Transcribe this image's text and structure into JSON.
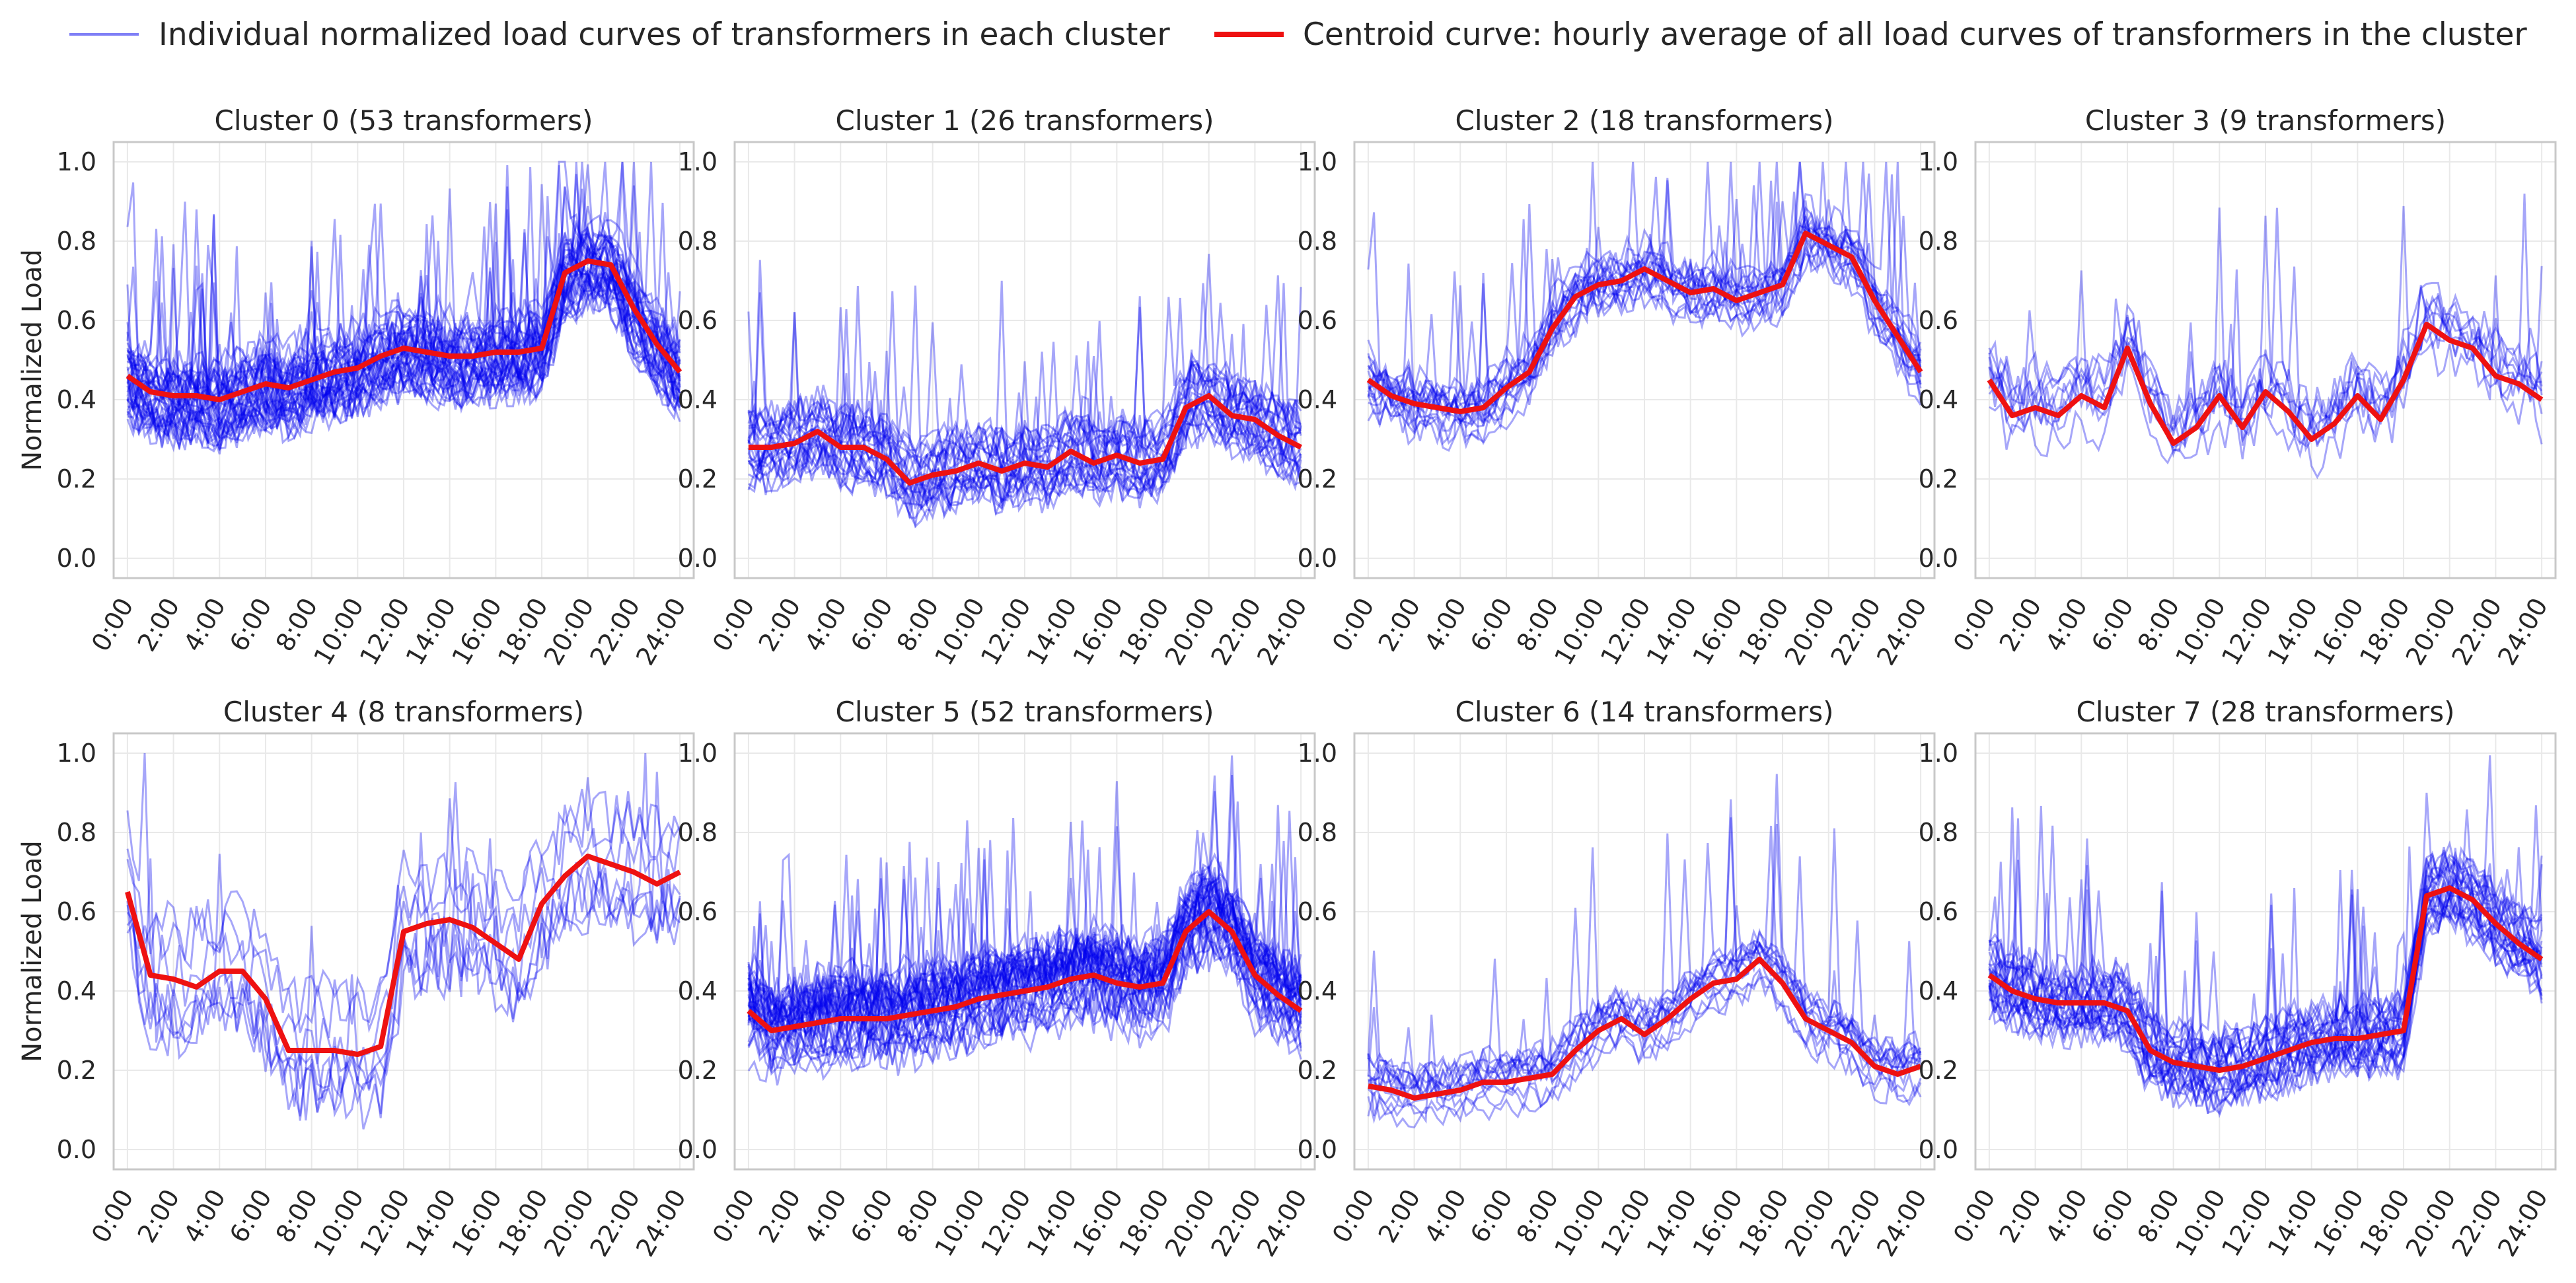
{
  "chart_data": {
    "type": "line",
    "layout": "2x4 grid of panels",
    "ylabel": "Normalized Load",
    "ylim": [
      -0.05,
      1.05
    ],
    "yticks": [
      "0.0",
      "0.2",
      "0.4",
      "0.6",
      "0.8",
      "1.0"
    ],
    "ytick_values": [
      0.0,
      0.2,
      0.4,
      0.6,
      0.8,
      1.0
    ],
    "xticks": [
      "0:00",
      "2:00",
      "4:00",
      "6:00",
      "8:00",
      "10:00",
      "12:00",
      "14:00",
      "16:00",
      "18:00",
      "20:00",
      "22:00",
      "24:00"
    ],
    "xtick_values": [
      0,
      2,
      4,
      6,
      8,
      10,
      12,
      14,
      16,
      18,
      20,
      22,
      24
    ],
    "xlim": [
      -0.6,
      24.6
    ],
    "legend": {
      "placement": "top-center",
      "individual_label": "Individual normalized load curves of transformers in each cluster",
      "centroid_label": "Centroid curve: hourly average of all load curves of transformers in the cluster",
      "individual_color": "#0000ee",
      "centroid_color": "#ee1111"
    },
    "panels": [
      {
        "title": "Cluster 0 (53 transformers)",
        "individual_count": 53,
        "individual_spread": 0.09,
        "centroid": {
          "hours": [
            0,
            1,
            2,
            3,
            4,
            5,
            6,
            7,
            8,
            9,
            10,
            11,
            12,
            13,
            14,
            15,
            16,
            17,
            18,
            19,
            20,
            21,
            22,
            23,
            24
          ],
          "values": [
            0.46,
            0.42,
            0.41,
            0.41,
            0.4,
            0.42,
            0.44,
            0.43,
            0.45,
            0.47,
            0.48,
            0.51,
            0.53,
            0.52,
            0.51,
            0.51,
            0.52,
            0.52,
            0.53,
            0.72,
            0.75,
            0.74,
            0.63,
            0.54,
            0.47
          ]
        }
      },
      {
        "title": "Cluster 1 (26 transformers)",
        "individual_count": 26,
        "individual_spread": 0.08,
        "centroid": {
          "hours": [
            0,
            1,
            2,
            3,
            4,
            5,
            6,
            7,
            8,
            9,
            10,
            11,
            12,
            13,
            14,
            15,
            16,
            17,
            18,
            19,
            20,
            21,
            22,
            23,
            24
          ],
          "values": [
            0.28,
            0.28,
            0.29,
            0.32,
            0.28,
            0.28,
            0.25,
            0.19,
            0.21,
            0.22,
            0.24,
            0.22,
            0.24,
            0.23,
            0.27,
            0.24,
            0.26,
            0.24,
            0.25,
            0.38,
            0.41,
            0.36,
            0.35,
            0.31,
            0.28
          ]
        }
      },
      {
        "title": "Cluster 2 (18 transformers)",
        "individual_count": 18,
        "individual_spread": 0.07,
        "centroid": {
          "hours": [
            0,
            1,
            2,
            3,
            4,
            5,
            6,
            7,
            8,
            9,
            10,
            11,
            12,
            13,
            14,
            15,
            16,
            17,
            18,
            19,
            20,
            21,
            22,
            23,
            24
          ],
          "values": [
            0.45,
            0.41,
            0.39,
            0.38,
            0.37,
            0.38,
            0.43,
            0.47,
            0.58,
            0.66,
            0.69,
            0.7,
            0.73,
            0.7,
            0.67,
            0.68,
            0.65,
            0.67,
            0.69,
            0.82,
            0.79,
            0.76,
            0.65,
            0.56,
            0.47
          ]
        }
      },
      {
        "title": "Cluster 3 (9 transformers)",
        "individual_count": 9,
        "individual_spread": 0.1,
        "centroid": {
          "hours": [
            0,
            1,
            2,
            3,
            4,
            5,
            6,
            7,
            8,
            9,
            10,
            11,
            12,
            13,
            14,
            15,
            16,
            17,
            18,
            19,
            20,
            21,
            22,
            23,
            24
          ],
          "values": [
            0.45,
            0.36,
            0.38,
            0.36,
            0.41,
            0.38,
            0.53,
            0.39,
            0.29,
            0.33,
            0.41,
            0.33,
            0.42,
            0.37,
            0.3,
            0.34,
            0.41,
            0.35,
            0.45,
            0.59,
            0.55,
            0.53,
            0.46,
            0.44,
            0.4
          ]
        }
      },
      {
        "title": "Cluster 4 (8 transformers)",
        "individual_count": 8,
        "individual_spread": 0.15,
        "centroid": {
          "hours": [
            0,
            1,
            2,
            3,
            4,
            5,
            6,
            7,
            8,
            9,
            10,
            11,
            12,
            13,
            14,
            15,
            16,
            17,
            18,
            19,
            20,
            21,
            22,
            23,
            24
          ],
          "values": [
            0.65,
            0.44,
            0.43,
            0.41,
            0.45,
            0.45,
            0.38,
            0.25,
            0.25,
            0.25,
            0.24,
            0.26,
            0.55,
            0.57,
            0.58,
            0.56,
            0.52,
            0.48,
            0.62,
            0.69,
            0.74,
            0.72,
            0.7,
            0.67,
            0.7
          ]
        }
      },
      {
        "title": "Cluster 5 (52 transformers)",
        "individual_count": 52,
        "individual_spread": 0.1,
        "centroid": {
          "hours": [
            0,
            1,
            2,
            3,
            4,
            5,
            6,
            7,
            8,
            9,
            10,
            11,
            12,
            13,
            14,
            15,
            16,
            17,
            18,
            19,
            20,
            21,
            22,
            23,
            24
          ],
          "values": [
            0.35,
            0.3,
            0.31,
            0.32,
            0.33,
            0.33,
            0.33,
            0.34,
            0.35,
            0.36,
            0.38,
            0.39,
            0.4,
            0.41,
            0.43,
            0.44,
            0.42,
            0.41,
            0.42,
            0.55,
            0.6,
            0.55,
            0.44,
            0.39,
            0.35
          ]
        }
      },
      {
        "title": "Cluster 6 (14 transformers)",
        "individual_count": 14,
        "individual_spread": 0.06,
        "centroid": {
          "hours": [
            0,
            1,
            2,
            3,
            4,
            5,
            6,
            7,
            8,
            9,
            10,
            11,
            12,
            13,
            14,
            15,
            16,
            17,
            18,
            19,
            20,
            21,
            22,
            23,
            24
          ],
          "values": [
            0.16,
            0.15,
            0.13,
            0.14,
            0.15,
            0.17,
            0.17,
            0.18,
            0.19,
            0.25,
            0.3,
            0.33,
            0.29,
            0.33,
            0.38,
            0.42,
            0.43,
            0.48,
            0.42,
            0.33,
            0.3,
            0.27,
            0.21,
            0.19,
            0.21
          ]
        }
      },
      {
        "title": "Cluster 7 (28 transformers)",
        "individual_count": 28,
        "individual_spread": 0.08,
        "centroid": {
          "hours": [
            0,
            1,
            2,
            3,
            4,
            5,
            6,
            7,
            8,
            9,
            10,
            11,
            12,
            13,
            14,
            15,
            16,
            17,
            18,
            19,
            20,
            21,
            22,
            23,
            24
          ],
          "values": [
            0.44,
            0.4,
            0.38,
            0.37,
            0.37,
            0.37,
            0.35,
            0.25,
            0.22,
            0.21,
            0.2,
            0.21,
            0.23,
            0.25,
            0.27,
            0.28,
            0.28,
            0.29,
            0.3,
            0.64,
            0.66,
            0.63,
            0.57,
            0.52,
            0.48
          ]
        }
      }
    ]
  }
}
